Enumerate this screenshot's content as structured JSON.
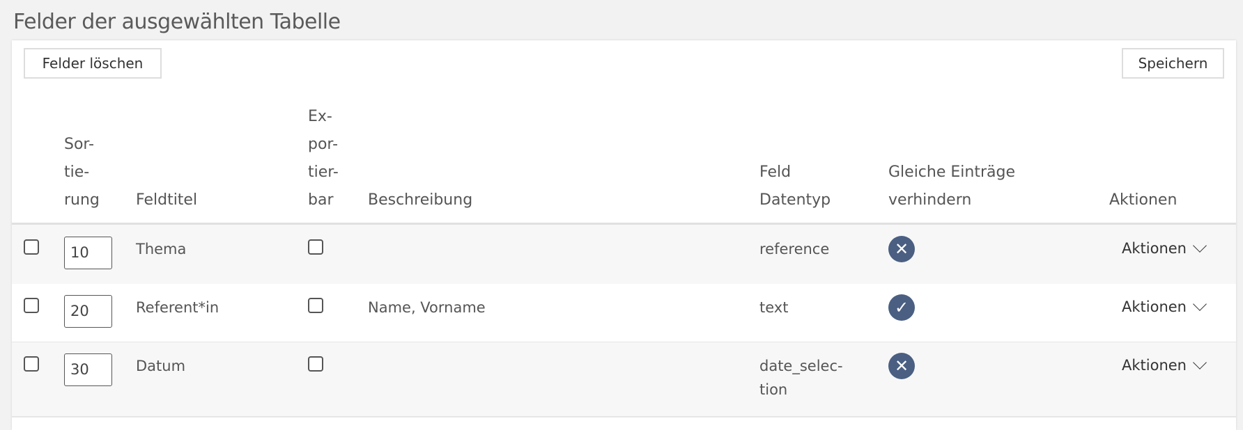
{
  "page_title": "Felder der ausgewählten Tabelle",
  "toolbar": {
    "delete_label": "Felder löschen",
    "save_label": "Speichern"
  },
  "headers": {
    "sort": [
      "Sor-",
      "tie-",
      "rung"
    ],
    "title": "Feldtitel",
    "exportable": [
      "Ex-",
      "por-",
      "tier-",
      "bar"
    ],
    "description": "Beschreibung",
    "datatype": [
      "Feld",
      "Datentyp"
    ],
    "unique": [
      "Gleiche Einträge",
      "verhindern"
    ],
    "actions": "Aktionen"
  },
  "rows": [
    {
      "sort": "10",
      "title": "Thema",
      "description": "",
      "datatype": [
        "reference"
      ],
      "unique": false,
      "unique_icon": "x-circle-icon",
      "actions": "Aktionen"
    },
    {
      "sort": "20",
      "title": "Referent*in",
      "description": "Name, Vorname",
      "datatype": [
        "text"
      ],
      "unique": true,
      "unique_icon": "check-circle-icon",
      "actions": "Aktionen"
    },
    {
      "sort": "30",
      "title": "Datum",
      "description": "",
      "datatype": [
        "date_selec-",
        "tion"
      ],
      "unique": false,
      "unique_icon": "x-circle-icon",
      "actions": "Aktionen"
    }
  ],
  "colors": {
    "icon": "#4a5f82",
    "background": "#f2f2f2",
    "row_alt": "#f7f7f7"
  }
}
